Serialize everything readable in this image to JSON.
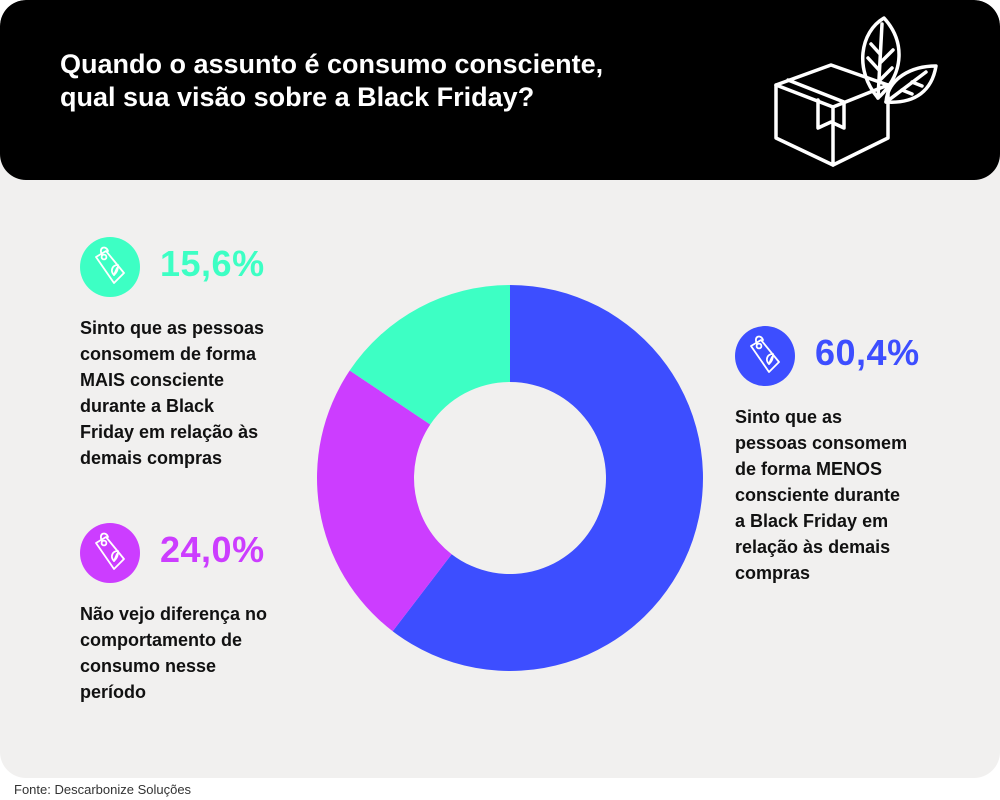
{
  "header": {
    "title_lines": [
      "Quando o assunto é consumo consciente,",
      "qual sua visão sobre a Black Friday?"
    ]
  },
  "stats": {
    "mais": {
      "pct": "15,6%",
      "lines": [
        "Sinto que as pessoas",
        "consomem de forma",
        "MAIS consciente",
        "durante a Black",
        "Friday em relação às",
        "demais compras"
      ]
    },
    "neutro": {
      "pct": "24,0%",
      "lines": [
        "Não vejo diferença no",
        "comportamento de",
        "consumo nesse",
        "período"
      ]
    },
    "menos": {
      "pct": "60,4%",
      "lines": [
        "Sinto que as",
        "pessoas consomem",
        "de forma MENOS",
        "consciente durante",
        "a Black Friday em",
        "relação às demais",
        "compras"
      ]
    }
  },
  "chart_data": {
    "type": "pie",
    "donut": true,
    "categories": [
      "Sinto que as pessoas consomem de forma MENOS consciente durante a Black Friday em relação às demais compras",
      "Não vejo diferença no comportamento de consumo nesse período",
      "Sinto que as pessoas consomem de forma MAIS consciente durante a Black Friday em relação às demais compras"
    ],
    "values": [
      60.4,
      24.0,
      15.6
    ],
    "colors": [
      "#3d4eff",
      "#cc3dff",
      "#3dffc4"
    ]
  },
  "colors": {
    "mais": "#3dffc4",
    "neutro": "#cc3dff",
    "menos": "#3d4eff",
    "header_bg": "#000000",
    "card_bg": "#f1f0ef"
  },
  "source": "Fonte: Descarbonize Soluções"
}
